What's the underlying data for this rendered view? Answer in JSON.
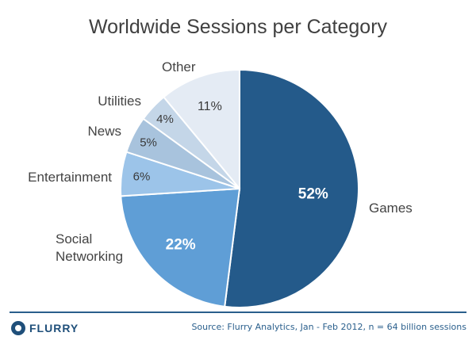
{
  "chart_data": {
    "type": "pie",
    "title": "Worldwide Sessions per Category",
    "slices": [
      {
        "label": "Games",
        "value": 52,
        "display": "52%",
        "color": "#245a8a",
        "pct_color": "#ffffff",
        "label_lines": [
          "Games"
        ]
      },
      {
        "label": "Social Networking",
        "value": 22,
        "display": "22%",
        "color": "#5f9ed6",
        "pct_color": "#ffffff",
        "label_lines": [
          "Social",
          "Networking"
        ]
      },
      {
        "label": "Entertainment",
        "value": 6,
        "display": "6%",
        "color": "#9cc4e9",
        "pct_color": "#3a3a3a",
        "label_lines": [
          "Entertainment"
        ]
      },
      {
        "label": "News",
        "value": 5,
        "display": "5%",
        "color": "#a8c3dd",
        "pct_color": "#3a3a3a",
        "label_lines": [
          "News"
        ]
      },
      {
        "label": "Utilities",
        "value": 4,
        "display": "4%",
        "color": "#c4d6e8",
        "pct_color": "#3a3a3a",
        "label_lines": [
          "Utilities"
        ]
      },
      {
        "label": "Other",
        "value": 11,
        "display": "11%",
        "color": "#e4ebf4",
        "pct_color": "#3a3a3a",
        "label_lines": [
          "Other"
        ]
      }
    ]
  },
  "footer": {
    "logo_text": "FLURRY",
    "source": "Source: Flurry Analytics, Jan - Feb 2012, n = 64 billion sessions"
  }
}
